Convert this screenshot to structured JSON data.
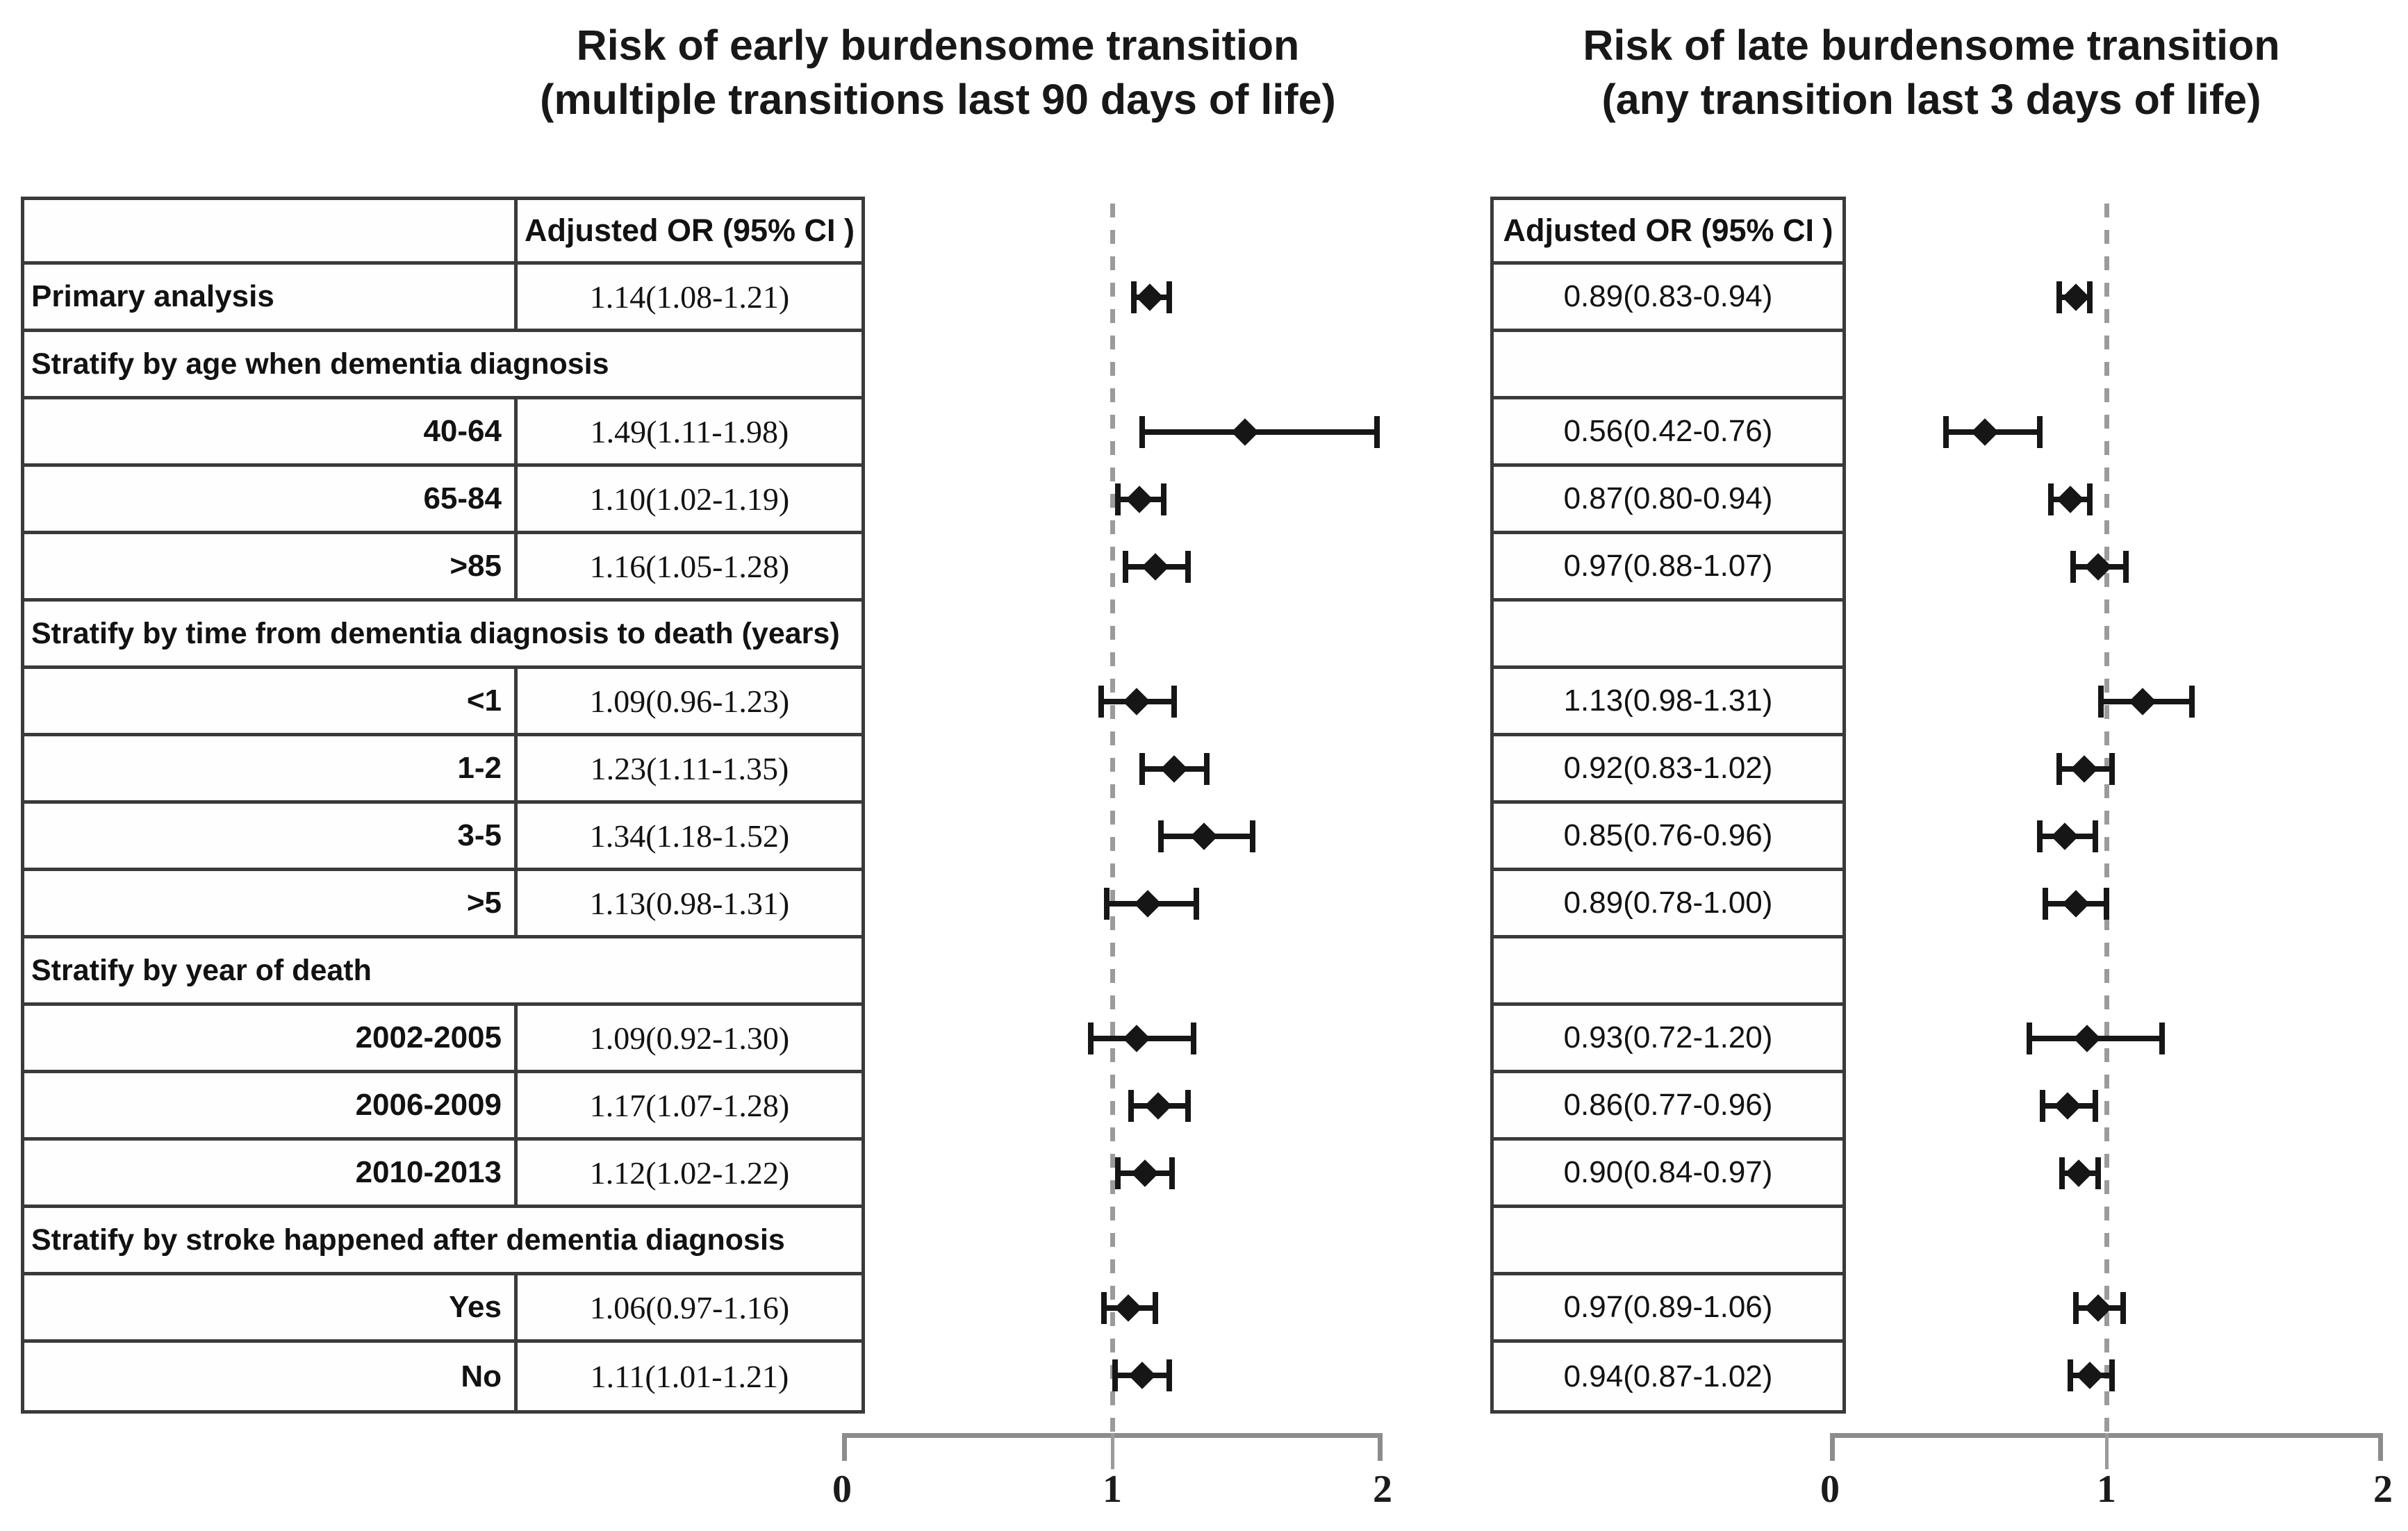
{
  "panels": [
    {
      "title_line1": "Risk of early burdensome transition",
      "title_line2": "(multiple transitions last 90 days of life)",
      "table_header": "Adjusted OR (95% CI )"
    },
    {
      "title_line1": "Risk of late burdensome transition",
      "title_line2": "(any transition last 3 days of life)",
      "table_header": "Adjusted OR (95% CI )"
    }
  ],
  "chart_data": [
    {
      "type": "scatter",
      "subtype": "forest",
      "title": "Risk of early burdensome transition (multiple transitions last 90 days of life)",
      "xlabel": "Adjusted OR (95% CI)",
      "xlim": [
        0,
        2
      ],
      "xticks": [
        "0",
        "1",
        "2"
      ],
      "refline": 1,
      "grid": false,
      "legend": false,
      "rows": [
        {
          "type": "data",
          "label": "Primary analysis",
          "align": "left",
          "text": "1.14(1.08-1.21)",
          "or": 1.14,
          "lo": 1.08,
          "hi": 1.21
        },
        {
          "type": "section",
          "label": "Stratify by age when dementia diagnosis"
        },
        {
          "type": "data",
          "label": "40-64",
          "text": "1.49(1.11-1.98)",
          "or": 1.49,
          "lo": 1.11,
          "hi": 1.98
        },
        {
          "type": "data",
          "label": "65-84",
          "text": "1.10(1.02-1.19)",
          "or": 1.1,
          "lo": 1.02,
          "hi": 1.19
        },
        {
          "type": "data",
          "label": ">85",
          "text": "1.16(1.05-1.28)",
          "or": 1.16,
          "lo": 1.05,
          "hi": 1.28
        },
        {
          "type": "section",
          "label": "Stratify by time from dementia diagnosis to death (years)"
        },
        {
          "type": "data",
          "label": "<1",
          "text": "1.09(0.96-1.23)",
          "or": 1.09,
          "lo": 0.96,
          "hi": 1.23
        },
        {
          "type": "data",
          "label": "1-2",
          "text": "1.23(1.11-1.35)",
          "or": 1.23,
          "lo": 1.11,
          "hi": 1.35
        },
        {
          "type": "data",
          "label": "3-5",
          "text": "1.34(1.18-1.52)",
          "or": 1.34,
          "lo": 1.18,
          "hi": 1.52
        },
        {
          "type": "data",
          "label": ">5",
          "text": "1.13(0.98-1.31)",
          "or": 1.13,
          "lo": 0.98,
          "hi": 1.31
        },
        {
          "type": "section",
          "label": "Stratify by year of death"
        },
        {
          "type": "data",
          "label": "2002-2005",
          "text": "1.09(0.92-1.30)",
          "or": 1.09,
          "lo": 0.92,
          "hi": 1.3
        },
        {
          "type": "data",
          "label": "2006-2009",
          "text": "1.17(1.07-1.28)",
          "or": 1.17,
          "lo": 1.07,
          "hi": 1.28
        },
        {
          "type": "data",
          "label": "2010-2013",
          "text": "1.12(1.02-1.22)",
          "or": 1.12,
          "lo": 1.02,
          "hi": 1.22
        },
        {
          "type": "section",
          "label": "Stratify by stroke happened after dementia diagnosis"
        },
        {
          "type": "data",
          "label": "Yes",
          "text": "1.06(0.97-1.16)",
          "or": 1.06,
          "lo": 0.97,
          "hi": 1.16
        },
        {
          "type": "data",
          "label": "No",
          "text": "1.11(1.01-1.21)",
          "or": 1.11,
          "lo": 1.01,
          "hi": 1.21
        }
      ]
    },
    {
      "type": "scatter",
      "subtype": "forest",
      "title": "Risk of late burdensome transition (any transition last 3 days of life)",
      "xlabel": "Adjusted OR (95% CI)",
      "xlim": [
        0,
        2
      ],
      "xticks": [
        "0",
        "1",
        "2"
      ],
      "refline": 1,
      "grid": false,
      "legend": false,
      "rows": [
        {
          "type": "data",
          "label": "Primary analysis",
          "text": "0.89(0.83-0.94)",
          "or": 0.89,
          "lo": 0.83,
          "hi": 0.94
        },
        {
          "type": "section",
          "label": "Stratify by age when dementia diagnosis"
        },
        {
          "type": "data",
          "label": "40-64",
          "text": "0.56(0.42-0.76)",
          "or": 0.56,
          "lo": 0.42,
          "hi": 0.76
        },
        {
          "type": "data",
          "label": "65-84",
          "text": "0.87(0.80-0.94)",
          "or": 0.87,
          "lo": 0.8,
          "hi": 0.94
        },
        {
          "type": "data",
          "label": ">85",
          "text": "0.97(0.88-1.07)",
          "or": 0.97,
          "lo": 0.88,
          "hi": 1.07
        },
        {
          "type": "section",
          "label": "Stratify by time from dementia diagnosis to death (years)"
        },
        {
          "type": "data",
          "label": "<1",
          "text": "1.13(0.98-1.31)",
          "or": 1.13,
          "lo": 0.98,
          "hi": 1.31
        },
        {
          "type": "data",
          "label": "1-2",
          "text": "0.92(0.83-1.02)",
          "or": 0.92,
          "lo": 0.83,
          "hi": 1.02
        },
        {
          "type": "data",
          "label": "3-5",
          "text": "0.85(0.76-0.96)",
          "or": 0.85,
          "lo": 0.76,
          "hi": 0.96
        },
        {
          "type": "data",
          "label": ">5",
          "text": "0.89(0.78-1.00)",
          "or": 0.89,
          "lo": 0.78,
          "hi": 1.0
        },
        {
          "type": "section",
          "label": "Stratify by year of death"
        },
        {
          "type": "data",
          "label": "2002-2005",
          "text": "0.93(0.72-1.20)",
          "or": 0.93,
          "lo": 0.72,
          "hi": 1.2
        },
        {
          "type": "data",
          "label": "2006-2009",
          "text": "0.86(0.77-0.96)",
          "or": 0.86,
          "lo": 0.77,
          "hi": 0.96
        },
        {
          "type": "data",
          "label": "2010-2013",
          "text": "0.90(0.84-0.97)",
          "or": 0.9,
          "lo": 0.84,
          "hi": 0.97
        },
        {
          "type": "section",
          "label": "Stratify by stroke happened after dementia diagnosis"
        },
        {
          "type": "data",
          "label": "Yes",
          "text": "0.97(0.89-1.06)",
          "or": 0.97,
          "lo": 0.89,
          "hi": 1.06
        },
        {
          "type": "data",
          "label": "No",
          "text": "0.94(0.87-1.02)",
          "or": 0.94,
          "lo": 0.87,
          "hi": 1.02
        }
      ]
    }
  ],
  "colors": {
    "marker": "#161616",
    "reference_line": "#9b9b9b",
    "axis": "#8c8c8c",
    "table_border": "#3a3a3a",
    "text": "#121212"
  }
}
